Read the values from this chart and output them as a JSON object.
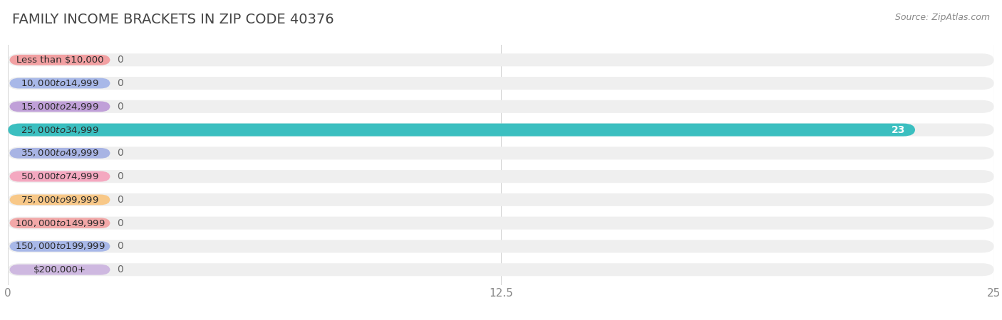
{
  "title": "FAMILY INCOME BRACKETS IN ZIP CODE 40376",
  "source": "Source: ZipAtlas.com",
  "categories": [
    "Less than $10,000",
    "$10,000 to $14,999",
    "$15,000 to $24,999",
    "$25,000 to $34,999",
    "$35,000 to $49,999",
    "$50,000 to $74,999",
    "$75,000 to $99,999",
    "$100,000 to $149,999",
    "$150,000 to $199,999",
    "$200,000+"
  ],
  "values": [
    0,
    0,
    0,
    23,
    0,
    0,
    0,
    0,
    0,
    0
  ],
  "bar_colors": [
    "#f2a0a2",
    "#a8b8e8",
    "#c0a0d8",
    "#3bbfc0",
    "#a8b4e4",
    "#f4a8c0",
    "#f8c888",
    "#f2a8a8",
    "#a8b8e8",
    "#ceb8e0"
  ],
  "xlim": [
    0,
    25
  ],
  "xticks": [
    0,
    12.5,
    25
  ],
  "background_color": "#ffffff",
  "bar_bg_color": "#efefef",
  "title_fontsize": 14,
  "tick_fontsize": 11,
  "value_label_fontsize": 10,
  "category_fontsize": 9.5,
  "highlight_index": 3
}
